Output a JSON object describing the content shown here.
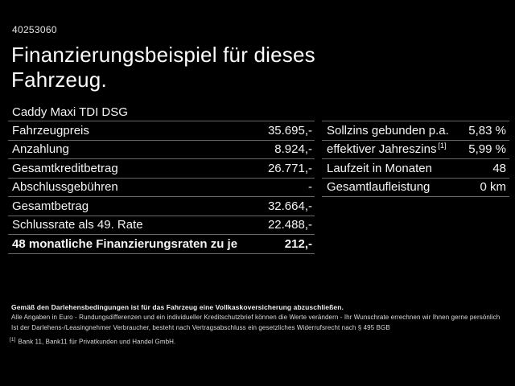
{
  "page": {
    "background": "#000000",
    "text_color": "#f5f5f5",
    "divider_color": "#686868"
  },
  "header": {
    "offer_number": "40253060",
    "title_line1": "Finanzierungsbeispiel für dieses",
    "title_line2": "Fahrzeug."
  },
  "vehicle": {
    "model": "Caddy Maxi TDI DSG"
  },
  "finance_table": {
    "rows": [
      {
        "label": "Fahrzeugpreis",
        "value": "35.695,-"
      },
      {
        "label": "Anzahlung",
        "value": "8.924,-"
      },
      {
        "label": "Gesamtkreditbetrag",
        "value": "26.771,-"
      },
      {
        "label": "Abschlussgebühren",
        "value": "-"
      },
      {
        "label": "Gesamtbetrag",
        "value": "32.664,-"
      },
      {
        "label": "Schlussrate als 49. Rate",
        "value": "22.488,-"
      },
      {
        "label": "48 monatliche Finanzierungsraten zu je",
        "value": "212,-"
      }
    ]
  },
  "conditions_table": {
    "rows": [
      {
        "label": "Sollzins gebunden p.a.",
        "sup": "",
        "value": "5,83 %"
      },
      {
        "label": "effektiver Jahreszins",
        "sup": "[1]",
        "value": "5,99 %"
      },
      {
        "label": "Laufzeit in Monaten",
        "sup": "",
        "value": "48"
      },
      {
        "label": "Gesamtlaufleistung",
        "sup": "",
        "value": "0 km"
      }
    ]
  },
  "footer": {
    "insurance_note": "Gemäß den Darlehensbedingungen ist für das Fahrzeug eine Vollkaskoversicherung abzuschließen.",
    "disclaimer_line1": "Alle Angaben in Euro - Rundungsdifferenzen und ein individueller Kreditschutzbrief können die Werte verändern - Ihr Wunschrate errechnen wir Ihnen gerne persönlich",
    "disclaimer_line2": "Ist der Darlehens-/Leasingnehmer Verbraucher, besteht nach Vertragsabschluss ein gesetzliches Widerrufsrecht nach § 495 BGB",
    "footnote_marker": "[1]",
    "footnote_text": "Bank 11, Bank11 für Privatkunden und Handel GmbH."
  }
}
